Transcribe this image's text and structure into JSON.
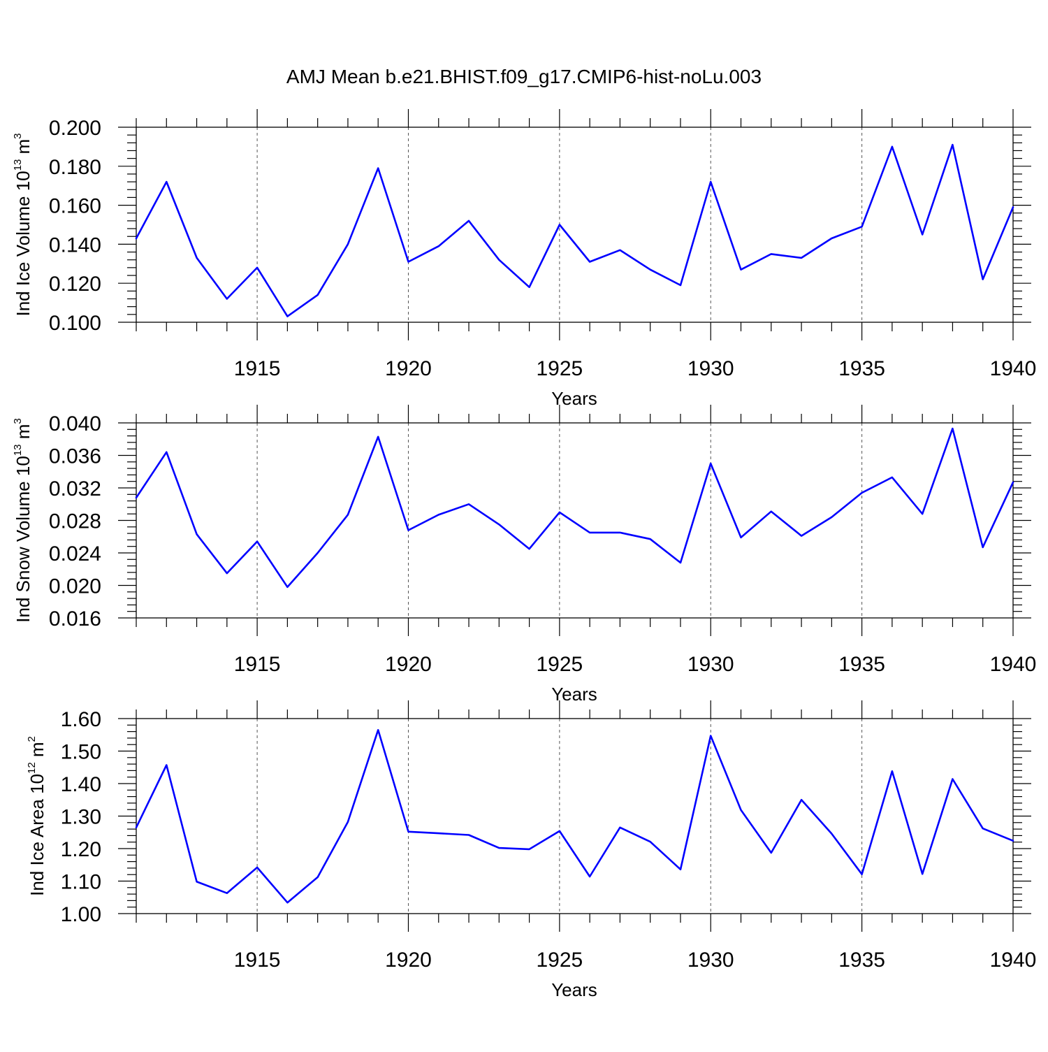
{
  "title": "AMJ Mean b.e21.BHIST.f09_g17.CMIP6-hist-noLu.003",
  "colors": {
    "series": "#0000ff",
    "grid": "#555555",
    "axes": "#000000"
  },
  "chart_data": [
    {
      "type": "line",
      "title": "",
      "xlabel": "Years",
      "ylabel": "Ind Ice Volume 10",
      "ylabel_exponent": "13",
      "ylabel_unit": " m",
      "ylabel_unit_exponent": "3",
      "xlim": [
        1911,
        1940
      ],
      "ylim": [
        0.1,
        0.2
      ],
      "x_ticks": [
        1915,
        1920,
        1925,
        1930,
        1935,
        1940
      ],
      "y_ticks": [
        0.1,
        0.12,
        0.14,
        0.16,
        0.18,
        0.2
      ],
      "y_tick_labels": [
        "0.100",
        "0.120",
        "0.140",
        "0.160",
        "0.180",
        "0.200"
      ],
      "grid": "vertical dashed at major x ticks",
      "x": [
        1911,
        1912,
        1913,
        1914,
        1915,
        1916,
        1917,
        1918,
        1919,
        1920,
        1921,
        1922,
        1923,
        1924,
        1925,
        1926,
        1927,
        1928,
        1929,
        1930,
        1931,
        1932,
        1933,
        1934,
        1935,
        1936,
        1937,
        1938,
        1939,
        1940
      ],
      "series": [
        {
          "values": [
            0.143,
            0.172,
            0.133,
            0.112,
            0.128,
            0.103,
            0.114,
            0.14,
            0.179,
            0.131,
            0.139,
            0.152,
            0.132,
            0.118,
            0.15,
            0.131,
            0.137,
            0.127,
            0.119,
            0.172,
            0.127,
            0.135,
            0.133,
            0.143,
            0.149,
            0.19,
            0.145,
            0.191,
            0.122,
            0.159
          ]
        }
      ]
    },
    {
      "type": "line",
      "title": "",
      "xlabel": "Years",
      "ylabel": "Ind Snow Volume 10",
      "ylabel_exponent": "13",
      "ylabel_unit": " m",
      "ylabel_unit_exponent": "3",
      "xlim": [
        1911,
        1940
      ],
      "ylim": [
        0.016,
        0.04
      ],
      "x_ticks": [
        1915,
        1920,
        1925,
        1930,
        1935,
        1940
      ],
      "y_ticks": [
        0.016,
        0.02,
        0.024,
        0.028,
        0.032,
        0.036,
        0.04
      ],
      "y_tick_labels": [
        "0.016",
        "0.020",
        "0.024",
        "0.028",
        "0.032",
        "0.036",
        "0.040"
      ],
      "grid": "vertical dashed at major x ticks",
      "x": [
        1911,
        1912,
        1913,
        1914,
        1915,
        1916,
        1917,
        1918,
        1919,
        1920,
        1921,
        1922,
        1923,
        1924,
        1925,
        1926,
        1927,
        1928,
        1929,
        1930,
        1931,
        1932,
        1933,
        1934,
        1935,
        1936,
        1937,
        1938,
        1939,
        1940
      ],
      "series": [
        {
          "values": [
            0.0308,
            0.0364,
            0.0263,
            0.0215,
            0.0254,
            0.0198,
            0.024,
            0.0287,
            0.0383,
            0.0268,
            0.0287,
            0.03,
            0.0275,
            0.0245,
            0.029,
            0.0265,
            0.0265,
            0.0257,
            0.0228,
            0.035,
            0.0259,
            0.0291,
            0.0261,
            0.0284,
            0.0314,
            0.0333,
            0.0288,
            0.0393,
            0.0247,
            0.0327
          ]
        }
      ]
    },
    {
      "type": "line",
      "title": "",
      "xlabel": "Years",
      "ylabel": "Ind Ice Area 10",
      "ylabel_exponent": "12",
      "ylabel_unit": " m",
      "ylabel_unit_exponent": "2",
      "xlim": [
        1911,
        1940
      ],
      "ylim": [
        1.0,
        1.6
      ],
      "x_ticks": [
        1915,
        1920,
        1925,
        1930,
        1935,
        1940
      ],
      "y_ticks": [
        1.0,
        1.1,
        1.2,
        1.3,
        1.4,
        1.5,
        1.6
      ],
      "y_tick_labels": [
        "1.00",
        "1.10",
        "1.20",
        "1.30",
        "1.40",
        "1.50",
        "1.60"
      ],
      "grid": "vertical dashed at major x ticks",
      "x": [
        1911,
        1912,
        1913,
        1914,
        1915,
        1916,
        1917,
        1918,
        1919,
        1920,
        1921,
        1922,
        1923,
        1924,
        1925,
        1926,
        1927,
        1928,
        1929,
        1930,
        1931,
        1932,
        1933,
        1934,
        1935,
        1936,
        1937,
        1938,
        1939,
        1940
      ],
      "series": [
        {
          "values": [
            1.265,
            1.457,
            1.098,
            1.063,
            1.142,
            1.034,
            1.112,
            1.282,
            1.565,
            1.252,
            1.247,
            1.242,
            1.202,
            1.198,
            1.254,
            1.114,
            1.265,
            1.221,
            1.136,
            1.547,
            1.319,
            1.187,
            1.35,
            1.246,
            1.121,
            1.438,
            1.122,
            1.414,
            1.262,
            1.224
          ]
        }
      ]
    }
  ]
}
